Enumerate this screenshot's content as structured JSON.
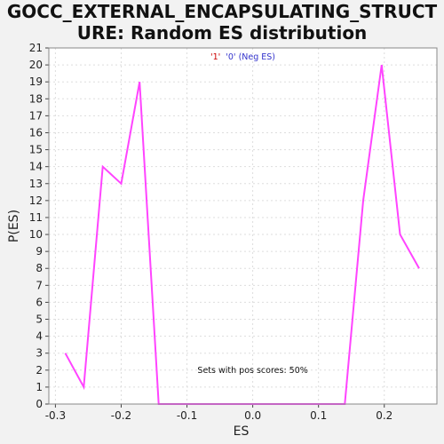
{
  "title_line1": "GOCC_EXTERNAL_ENCAPSULATING_STRUCT",
  "title_line2": "URE: Random ES distribution",
  "legend": {
    "label1": "'1'",
    "label0": "'0' (Neg ES)",
    "color1": "#cc0000",
    "color0": "#3333cc"
  },
  "annotation": "Sets with pos scores: 50%",
  "colors": {
    "line": "#ff44ff",
    "grid": "#dddddd",
    "plot_bg": "#ffffff",
    "page_bg": "#f2f2f2"
  },
  "chart_data": {
    "type": "line",
    "title": "GOCC_EXTERNAL_ENCAPSULATING_STRUCTURE: Random ES distribution",
    "xlabel": "ES",
    "ylabel": "P(ES)",
    "xlim": [
      -0.31,
      0.28
    ],
    "ylim": [
      0,
      21
    ],
    "xticks": [
      -0.3,
      -0.2,
      -0.1,
      0.0,
      0.1,
      0.2
    ],
    "xtick_labels": [
      "-0.3",
      "-0.2",
      "-0.1",
      "0.0",
      "0.1",
      "0.2"
    ],
    "yticks": [
      0,
      1,
      2,
      3,
      4,
      5,
      6,
      7,
      8,
      9,
      10,
      11,
      12,
      13,
      14,
      15,
      16,
      17,
      18,
      19,
      20,
      21
    ],
    "grid": true,
    "series": [
      {
        "x": [
          -0.285,
          -0.257,
          -0.228,
          -0.2,
          -0.172,
          -0.143,
          0.14,
          0.168,
          0.196,
          0.224,
          0.253
        ],
        "y": [
          3,
          1,
          14,
          13,
          19,
          0,
          0,
          12,
          20,
          10,
          8
        ]
      }
    ]
  }
}
